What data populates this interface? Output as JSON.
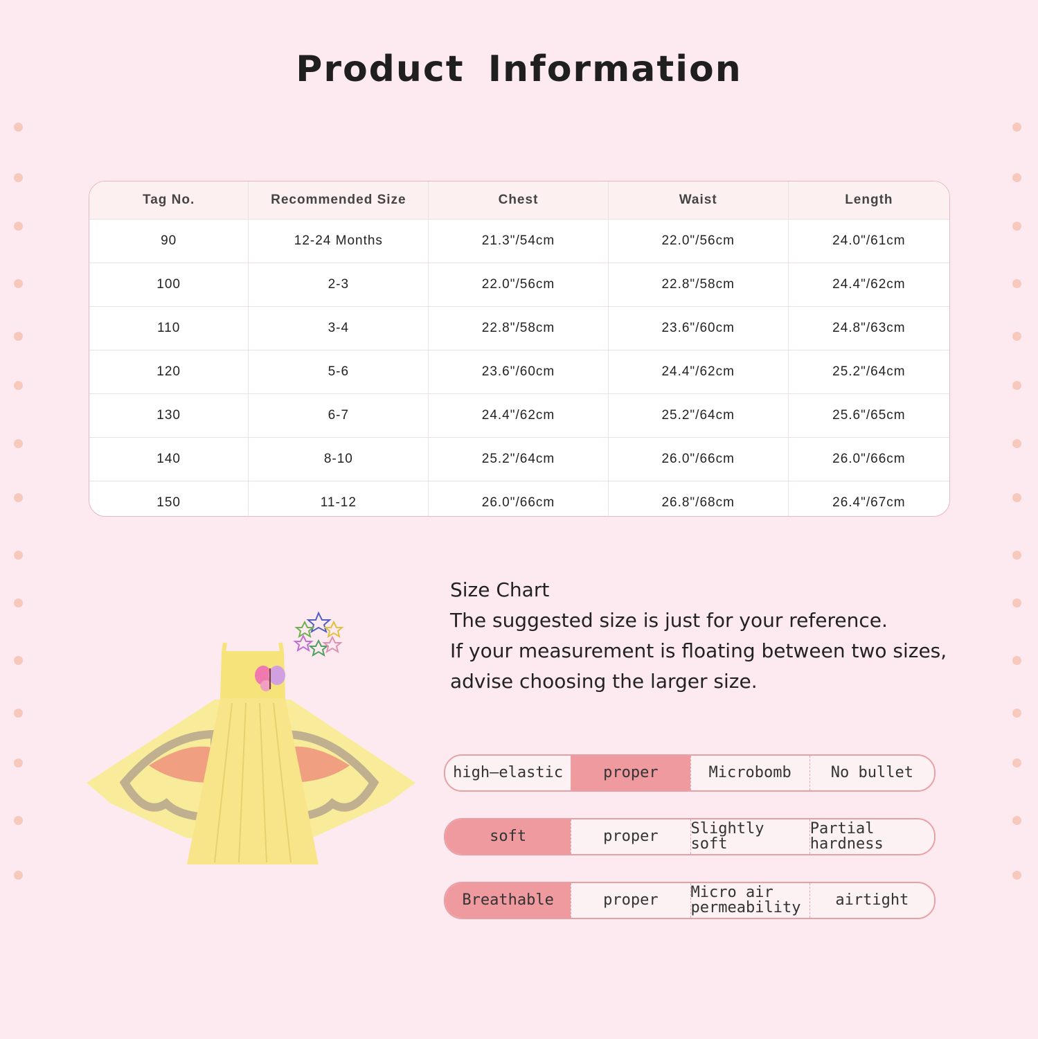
{
  "title": "Product  Information",
  "size_table": {
    "headers": [
      "Tag No.",
      "Recommended Size",
      "Chest",
      "Waist",
      "Length"
    ],
    "rows": [
      [
        "90",
        "12-24 Months",
        "21.3\"/54cm",
        "22.0\"/56cm",
        "24.0\"/61cm"
      ],
      [
        "100",
        "2-3",
        "22.0\"/56cm",
        "22.8\"/58cm",
        "24.4\"/62cm"
      ],
      [
        "110",
        "3-4",
        "22.8\"/58cm",
        "23.6\"/60cm",
        "24.8\"/63cm"
      ],
      [
        "120",
        "5-6",
        "23.6\"/60cm",
        "24.4\"/62cm",
        "25.2\"/64cm"
      ],
      [
        "130",
        "6-7",
        "24.4\"/62cm",
        "25.2\"/64cm",
        "25.6\"/65cm"
      ],
      [
        "140",
        "8-10",
        "25.2\"/64cm",
        "26.0\"/66cm",
        "26.0\"/66cm"
      ],
      [
        "150",
        "11-12",
        "26.0\"/66cm",
        "26.8\"/68cm",
        "26.4\"/67cm"
      ]
    ]
  },
  "note": {
    "heading": "Size Chart",
    "lines": [
      "The suggested size is just for your reference.",
      "If your measurement is floating between two sizes,",
      "advise choosing the larger size."
    ]
  },
  "attribute_scales": [
    {
      "options": [
        "high—elastic",
        "proper",
        "Microbomb",
        "No bullet"
      ],
      "selected_index": 1
    },
    {
      "options": [
        "soft",
        "proper",
        "Slightly soft",
        "Partial hardness"
      ],
      "selected_index": 0
    },
    {
      "options": [
        "Breathable",
        "proper",
        "Micro air permeability",
        "airtight"
      ],
      "selected_index": 0
    }
  ],
  "colors": {
    "background": "#fdeaf0",
    "highlight": "#ee9a9e",
    "border": "#e8a0a6",
    "dress": "#f8e58a"
  }
}
